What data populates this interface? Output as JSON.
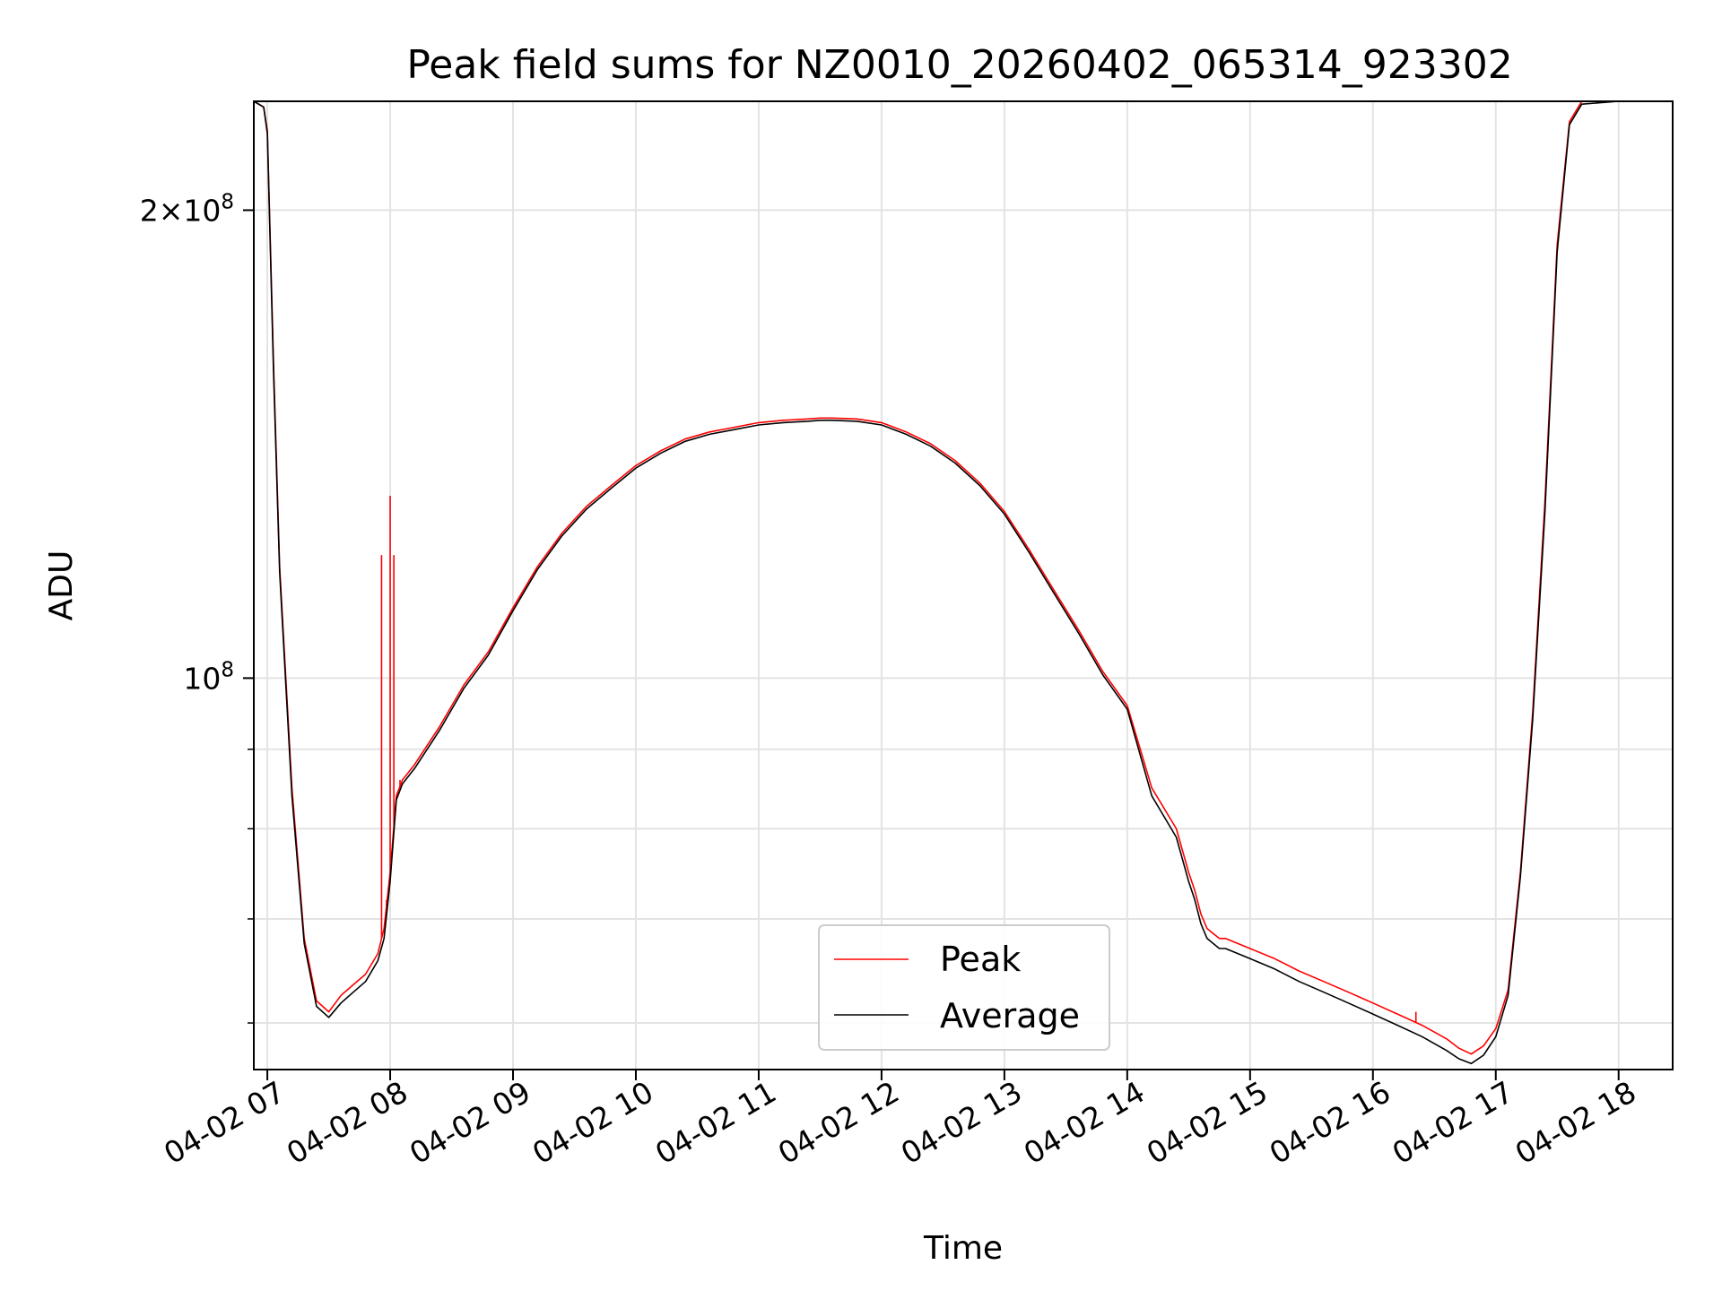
{
  "chart_data": {
    "type": "line",
    "title": "Peak field sums for NZ0010_20260402_065314_923302",
    "xlabel": "Time",
    "ylabel": "ADU",
    "x_tick_labels": [
      "04-02 07",
      "04-02 08",
      "04-02 09",
      "04-02 10",
      "04-02 11",
      "04-02 12",
      "04-02 13",
      "04-02 14",
      "04-02 15",
      "04-02 16",
      "04-02 17",
      "04-02 18"
    ],
    "y_tick_labels": [
      {
        "base": "2",
        "times": "×",
        "mant": "10",
        "exp": "8",
        "value": 200000000
      },
      {
        "base": "",
        "times": "",
        "mant": "10",
        "exp": "8",
        "value": 100000000
      }
    ],
    "y_scale": "log",
    "ylim": [
      56000000,
      235000000
    ],
    "xlim_hours": [
      6.89,
      18.44
    ],
    "x_unit": "hours on 04-02",
    "grid": true,
    "legend_position": "lower center",
    "series": [
      {
        "name": "Peak",
        "color": "#ff0000",
        "x": [
          6.89,
          6.97,
          7.0,
          7.05,
          7.1,
          7.2,
          7.3,
          7.4,
          7.5,
          7.6,
          7.7,
          7.8,
          7.9,
          7.95,
          8.0,
          8.05,
          8.1,
          8.2,
          8.4,
          8.6,
          8.8,
          9.0,
          9.2,
          9.4,
          9.6,
          9.8,
          10.0,
          10.2,
          10.4,
          10.6,
          10.8,
          11.0,
          11.2,
          11.4,
          11.5,
          11.6,
          11.8,
          12.0,
          12.2,
          12.4,
          12.6,
          12.8,
          13.0,
          13.2,
          13.4,
          13.6,
          13.8,
          14.0,
          14.2,
          14.4,
          14.5,
          14.55,
          14.6,
          14.65,
          14.7,
          14.75,
          14.8,
          14.9,
          15.0,
          15.2,
          15.4,
          15.6,
          15.8,
          16.0,
          16.2,
          16.4,
          16.6,
          16.7,
          16.8,
          16.9,
          17.0,
          17.1,
          17.2,
          17.3,
          17.4,
          17.5,
          17.6,
          17.7,
          18.0,
          18.1,
          18.2,
          18.3,
          18.44
        ],
        "y": [
          235000000,
          233000000,
          225000000,
          160000000,
          118000000,
          85000000,
          68000000,
          62000000,
          61000000,
          62500000,
          63500000,
          64500000,
          66500000,
          69000000,
          75000000,
          84000000,
          86000000,
          88000000,
          93000000,
          99000000,
          104000000,
          111000000,
          118000000,
          124000000,
          129000000,
          133000000,
          137000000,
          140000000,
          142500000,
          144000000,
          145000000,
          146000000,
          146500000,
          146800000,
          147000000,
          147000000,
          146800000,
          146000000,
          144000000,
          141500000,
          138000000,
          133500000,
          128000000,
          121000000,
          114000000,
          107500000,
          101000000,
          96000000,
          85000000,
          80000000,
          75000000,
          73000000,
          70500000,
          69000000,
          68500000,
          68000000,
          68000000,
          67500000,
          67000000,
          66000000,
          64800000,
          63800000,
          62800000,
          61800000,
          60800000,
          59800000,
          58600000,
          57800000,
          57300000,
          58000000,
          59500000,
          63000000,
          75000000,
          95000000,
          130000000,
          190000000,
          228000000,
          235000000,
          235000000,
          235000000,
          235000000,
          235000000,
          235000000
        ],
        "spikes": [
          {
            "x": 7.93,
            "y": 120000000
          },
          {
            "x": 7.97,
            "y": 72000000
          },
          {
            "x": 8.0,
            "y": 131000000
          },
          {
            "x": 8.03,
            "y": 120000000
          },
          {
            "x": 8.08,
            "y": 86000000
          },
          {
            "x": 16.35,
            "y": 61000000
          }
        ]
      },
      {
        "name": "Average",
        "color": "#000000",
        "x": [
          6.89,
          6.97,
          7.0,
          7.05,
          7.1,
          7.2,
          7.3,
          7.4,
          7.5,
          7.6,
          7.7,
          7.8,
          7.9,
          7.95,
          8.0,
          8.05,
          8.1,
          8.2,
          8.4,
          8.6,
          8.8,
          9.0,
          9.2,
          9.4,
          9.6,
          9.8,
          10.0,
          10.2,
          10.4,
          10.6,
          10.8,
          11.0,
          11.2,
          11.4,
          11.5,
          11.6,
          11.8,
          12.0,
          12.2,
          12.4,
          12.6,
          12.8,
          13.0,
          13.2,
          13.4,
          13.6,
          13.8,
          14.0,
          14.2,
          14.4,
          14.5,
          14.55,
          14.6,
          14.65,
          14.7,
          14.75,
          14.8,
          14.9,
          15.0,
          15.2,
          15.4,
          15.6,
          15.8,
          16.0,
          16.2,
          16.4,
          16.6,
          16.7,
          16.8,
          16.9,
          17.0,
          17.1,
          17.2,
          17.3,
          17.4,
          17.5,
          17.6,
          17.7,
          18.0,
          18.1,
          18.2,
          18.3,
          18.44
        ],
        "y": [
          235000000,
          233000000,
          224000000,
          158000000,
          117000000,
          84000000,
          67500000,
          61500000,
          60500000,
          61800000,
          62800000,
          63800000,
          65800000,
          68000000,
          74000000,
          83500000,
          85500000,
          87500000,
          92500000,
          98500000,
          103500000,
          110500000,
          117500000,
          123500000,
          128500000,
          132500000,
          136500000,
          139500000,
          142000000,
          143500000,
          144500000,
          145500000,
          146000000,
          146300000,
          146500000,
          146500000,
          146300000,
          145500000,
          143500000,
          141000000,
          137500000,
          133000000,
          127500000,
          120500000,
          113500000,
          107000000,
          100500000,
          95500000,
          84000000,
          79000000,
          74000000,
          72000000,
          69500000,
          68000000,
          67500000,
          67000000,
          67000000,
          66500000,
          66000000,
          65000000,
          63800000,
          62800000,
          61800000,
          60800000,
          59800000,
          58800000,
          57600000,
          56900000,
          56500000,
          57200000,
          58800000,
          62500000,
          74500000,
          94000000,
          128000000,
          188000000,
          227000000,
          234000000,
          235000000,
          235000000,
          235000000,
          235000000,
          235000000
        ]
      }
    ]
  }
}
